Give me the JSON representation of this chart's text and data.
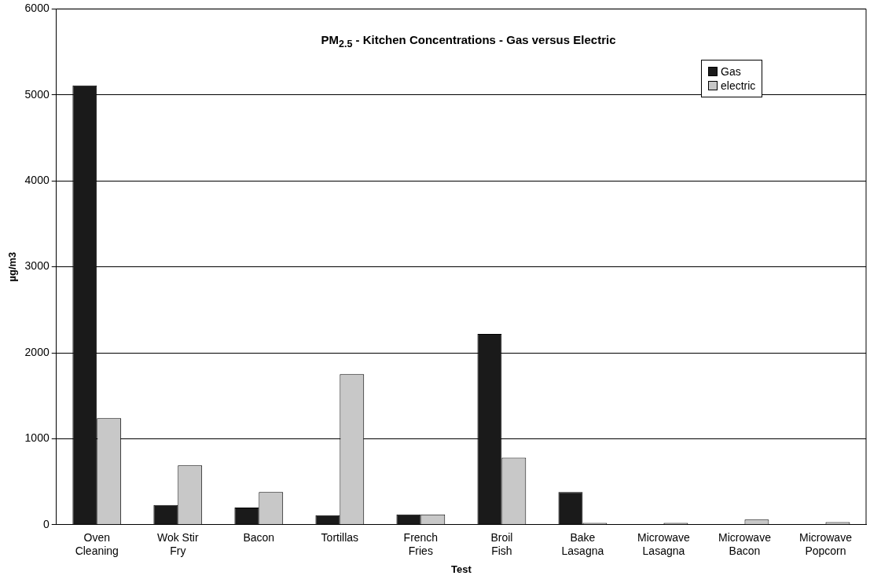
{
  "chart_data": {
    "type": "bar",
    "title": "PM$_{2.5}$ - Kitchen Concentrations - Gas versus Electric",
    "xlabel": "Test",
    "ylabel": "µg/m3",
    "categories": [
      "Oven Cleaning",
      "Wok Stir Fry",
      "Bacon",
      "Tortillas",
      "French Fries",
      "Broil Fish",
      "Bake Lasagna",
      "Microwave Lasagna",
      "Microwave Bacon",
      "Microwave Popcorn"
    ],
    "series": [
      {
        "name": "Gas",
        "color": "#1a1a1a",
        "values": [
          5110,
          230,
          200,
          110,
          120,
          2220,
          380,
          null,
          0,
          0
        ]
      },
      {
        "name": "electric",
        "color": "#c8c8c8",
        "values": [
          1240,
          690,
          380,
          1750,
          120,
          780,
          20,
          20,
          60,
          30
        ]
      }
    ],
    "ylim": [
      0,
      6000
    ],
    "yticks": [
      0,
      1000,
      2000,
      3000,
      4000,
      5000,
      6000
    ],
    "grid": "y",
    "legend": "top right"
  }
}
